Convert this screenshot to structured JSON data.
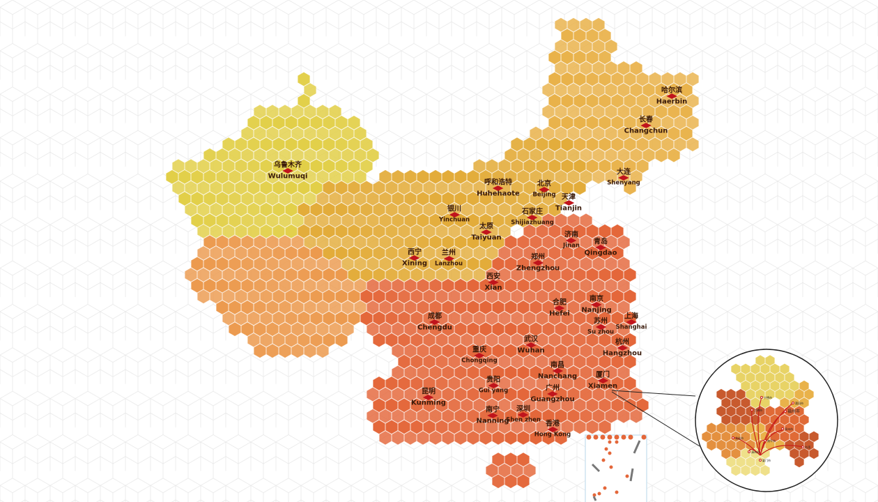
{
  "colors": {
    "xinjiang": "#e2cf48",
    "tibet": "#ec9a4e",
    "north": "#e3ac3a",
    "northeast": "#e9b24a",
    "south": "#e4673a",
    "marker": "#c0141c",
    "inset_border": "#222222"
  },
  "cities": [
    {
      "zh": "乌鲁木齐",
      "en": "Wulumuqi"
    },
    {
      "zh": "呼和浩特",
      "en": "Huhehaote"
    },
    {
      "zh": "北京",
      "en": "Beijing"
    },
    {
      "zh": "天津",
      "en": "Tianjin"
    },
    {
      "zh": "银川",
      "en": "Yinchuan"
    },
    {
      "zh": "石家庄",
      "en": "Shijiazhuang"
    },
    {
      "zh": "太原",
      "en": "Taiyuan"
    },
    {
      "zh": "西宁",
      "en": "Xining"
    },
    {
      "zh": "兰州",
      "en": "Lanzhou"
    },
    {
      "zh": "济南",
      "en": "Jinan"
    },
    {
      "zh": "青岛",
      "en": "Qingdao"
    },
    {
      "zh": "郑州",
      "en": "Zhengzhou"
    },
    {
      "zh": "西安",
      "en": "Xian"
    },
    {
      "zh": "合肥",
      "en": "Hefei"
    },
    {
      "zh": "南京",
      "en": "Nanjing"
    },
    {
      "zh": "苏州",
      "en": "Su zhou"
    },
    {
      "zh": "上海",
      "en": "Shanghai"
    },
    {
      "zh": "成都",
      "en": "Chengdu"
    },
    {
      "zh": "武汉",
      "en": "Wuhan"
    },
    {
      "zh": "杭州",
      "en": "Hangzhou"
    },
    {
      "zh": "重庆",
      "en": "Chongqing"
    },
    {
      "zh": "南昌",
      "en": "Nanchang"
    },
    {
      "zh": "厦门",
      "en": "Xiamen"
    },
    {
      "zh": "昆明",
      "en": "Kunming"
    },
    {
      "zh": "贵阳",
      "en": "Gui yang"
    },
    {
      "zh": "广州",
      "en": "Guangzhou"
    },
    {
      "zh": "深圳",
      "en": "Shen zhen"
    },
    {
      "zh": "南宁",
      "en": "Nanning"
    },
    {
      "zh": "香港",
      "en": "Hong Kong"
    },
    {
      "zh": "哈尔滨",
      "en": "Haerbin"
    },
    {
      "zh": "长春",
      "en": "Changchun"
    },
    {
      "zh": "大连",
      "en": "Shenyang"
    }
  ],
  "inset": {
    "labels": [
      "福州市",
      "厦门市",
      "宁德市",
      "莆田市",
      "泉州市",
      "漳州市",
      "三明市",
      "南平市",
      "龙岩市",
      "台湾"
    ]
  }
}
